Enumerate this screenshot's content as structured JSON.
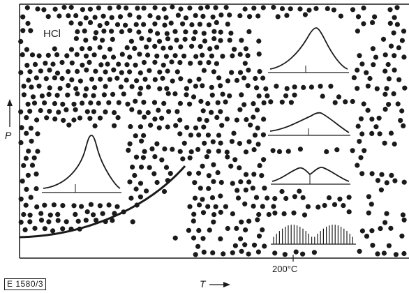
{
  "diagram": {
    "substance": "HCl",
    "y_axis": "P",
    "x_axis": "T",
    "temperature_mark": "200°C",
    "figure_ref": "E 1580/3"
  },
  "colors": {
    "ink": "#1a1a1a",
    "background": "#ffffff"
  }
}
